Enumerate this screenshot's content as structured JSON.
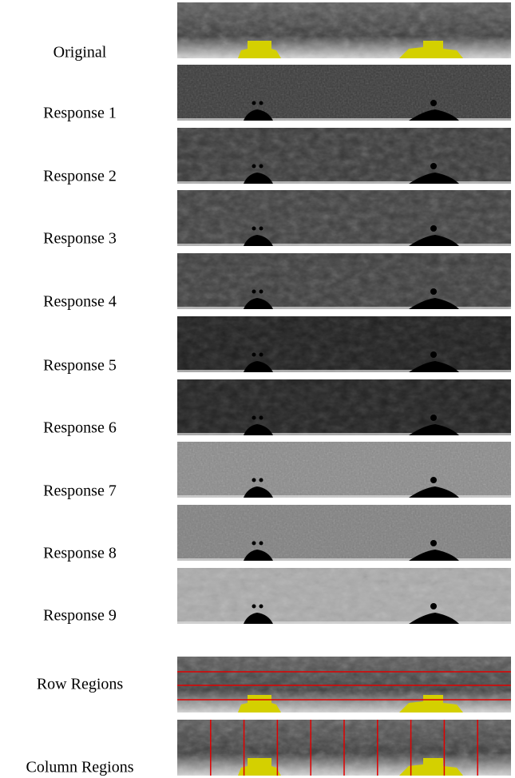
{
  "figure": {
    "labels": [
      "Original",
      "Response 1",
      "Response 2",
      "Response 3",
      "Response 4",
      "Response 5",
      "Response 6",
      "Response 7",
      "Response 8",
      "Response 9",
      "Row Regions",
      "Column Regions"
    ]
  }
}
